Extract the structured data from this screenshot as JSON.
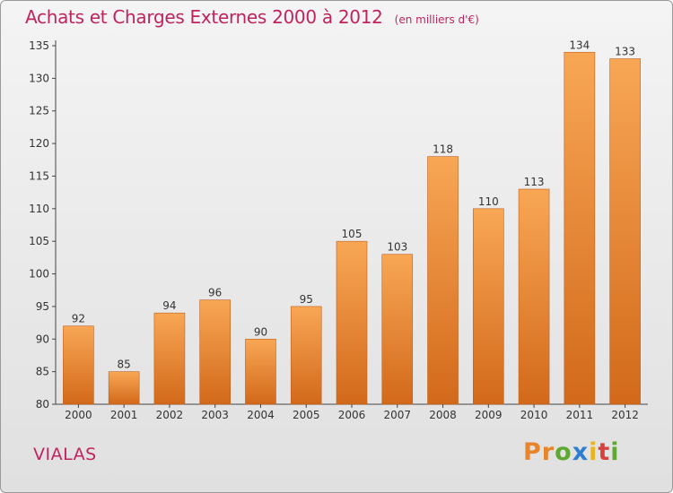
{
  "chart_data": {
    "type": "bar",
    "title": "Achats et Charges Externes 2000 à 2012",
    "subtitle": "(en milliers d'€)",
    "categories": [
      "2000",
      "2001",
      "2002",
      "2003",
      "2004",
      "2005",
      "2006",
      "2007",
      "2008",
      "2009",
      "2010",
      "2011",
      "2012"
    ],
    "values": [
      92,
      85,
      94,
      96,
      90,
      95,
      105,
      103,
      118,
      110,
      113,
      134,
      133
    ],
    "ylim": [
      80,
      135
    ],
    "yticks": [
      80,
      85,
      90,
      95,
      100,
      105,
      110,
      115,
      120,
      125,
      130,
      135
    ],
    "xlabel": "",
    "ylabel": "",
    "grid": false,
    "colors": {
      "bar_top": "#f8a755",
      "bar_bottom": "#d2691a",
      "bar_edge": "#c0601c",
      "title": "#c0245e"
    }
  },
  "footer": {
    "commune": "VIALAS",
    "brand": "Proxiti",
    "brand_colors": [
      "#e8842b",
      "#e8842b",
      "#5fa832",
      "#2d7fd0",
      "#e8b520",
      "#d84040",
      "#5fa832"
    ]
  }
}
